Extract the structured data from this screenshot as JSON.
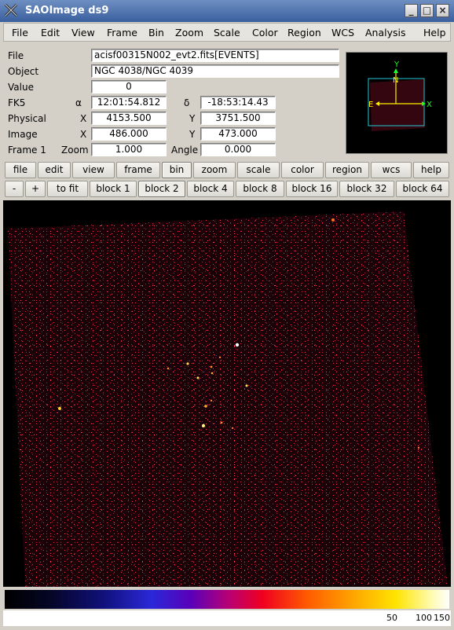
{
  "window": {
    "title": "SAOImage ds9"
  },
  "menubar": [
    "File",
    "Edit",
    "View",
    "Frame",
    "Bin",
    "Zoom",
    "Scale",
    "Color",
    "Region",
    "WCS",
    "Analysis",
    "Help"
  ],
  "info": {
    "file_label": "File",
    "file_value": "acisf00315N002_evt2.fits[EVENTS]",
    "object_label": "Object",
    "object_value": "NGC 4038/NGC 4039",
    "value_label": "Value",
    "value_value": "0",
    "fk5_label": "FK5",
    "alpha_sym": "α",
    "alpha_value": "12:01:54.812",
    "delta_sym": "δ",
    "delta_value": "-18:53:14.43",
    "physical_label": "Physical",
    "phys_x_label": "X",
    "phys_x_value": "4153.500",
    "phys_y_label": "Y",
    "phys_y_value": "3751.500",
    "image_label": "Image",
    "img_x_label": "X",
    "img_x_value": "486.000",
    "img_y_label": "Y",
    "img_y_value": "473.000",
    "frame_label": "Frame 1",
    "zoom_label": "Zoom",
    "zoom_value": "1.000",
    "angle_label": "Angle",
    "angle_value": "0.000"
  },
  "panner": {
    "n": "N",
    "e": "E",
    "x": "X",
    "y": "Y"
  },
  "buttonbar_main": [
    "file",
    "edit",
    "view",
    "frame",
    "bin",
    "zoom",
    "scale",
    "color",
    "region",
    "wcs",
    "help"
  ],
  "buttonbar_main_active": "bin",
  "buttonbar_bin": [
    "-",
    "+",
    "to fit",
    "block 1",
    "block 2",
    "block 4",
    "block 8",
    "block 16",
    "block 32",
    "block 64"
  ],
  "buttonbar_bin_active": "block 2",
  "colorbar": {
    "labels": [
      "50",
      "100",
      "150"
    ]
  }
}
